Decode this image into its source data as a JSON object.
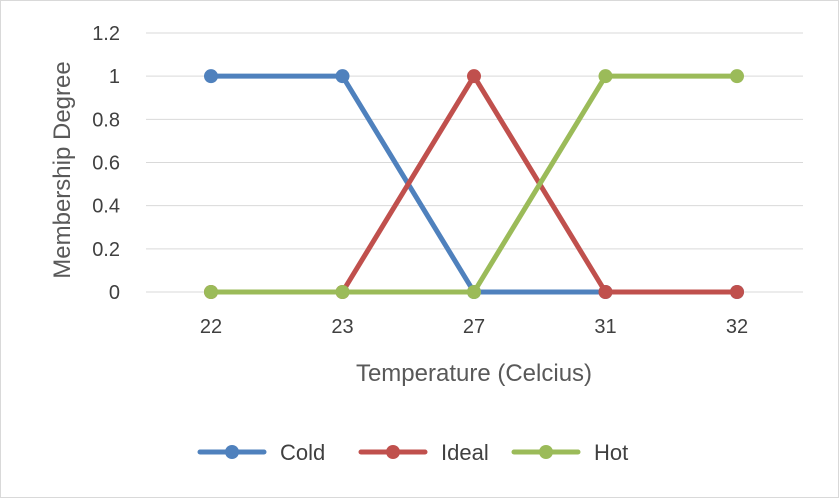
{
  "chart_data": {
    "type": "line",
    "title": "",
    "xlabel": "Temperature (Celcius)",
    "ylabel": "Membership Degree",
    "categories": [
      "22",
      "23",
      "27",
      "31",
      "32"
    ],
    "y_ticks": [
      "0",
      "0.2",
      "0.4",
      "0.6",
      "0.8",
      "1",
      "1.2"
    ],
    "ylim": [
      0,
      1.2
    ],
    "grid": true,
    "legend_position": "bottom",
    "series": [
      {
        "name": "Cold",
        "color": "#4f81bd",
        "values": [
          1,
          1,
          0,
          0,
          0
        ]
      },
      {
        "name": "Ideal",
        "color": "#c0504d",
        "values": [
          0,
          0,
          1,
          0,
          0
        ]
      },
      {
        "name": "Hot",
        "color": "#9bbb59",
        "values": [
          0,
          0,
          0,
          1,
          1
        ]
      }
    ]
  }
}
